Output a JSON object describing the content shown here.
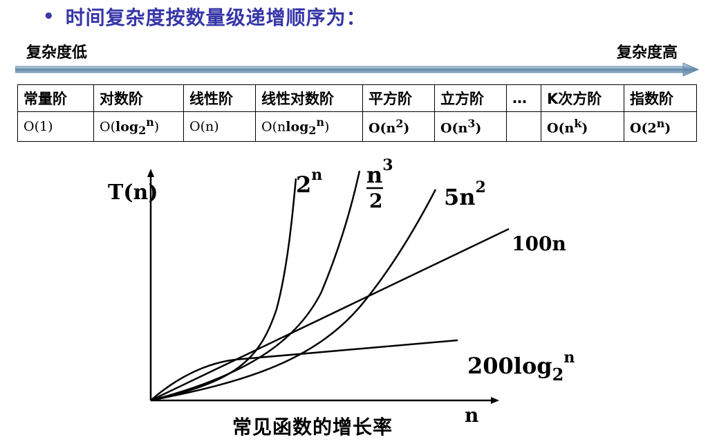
{
  "header": {
    "bullet": "•",
    "title": "时间复杂度按数量级递增顺序为："
  },
  "scale": {
    "low_label": "复杂度低",
    "high_label": "复杂度高"
  },
  "order_table": {
    "headers": [
      "常量阶",
      "对数阶",
      "线性阶",
      "线性对数阶",
      "平方阶",
      "立方阶",
      "…",
      "K次方阶",
      "指数阶"
    ],
    "values": [
      {
        "main": "O(1)"
      },
      {
        "pre": "O(",
        "b": "log",
        "sub": "2",
        "sup": "n",
        "post": ")"
      },
      {
        "main": "O(n)"
      },
      {
        "pre": "O(n",
        "b": "log",
        "sub": "2",
        "sup": "n",
        "post": ")"
      },
      {
        "pre": "O(n",
        "sup": "2",
        "post": ")",
        "bold": true
      },
      {
        "pre": "O(n",
        "sup": "3",
        "post": ")",
        "bold": true
      },
      {
        "main": ""
      },
      {
        "pre": "O(n",
        "sup": "k",
        "post": ")",
        "bold": true
      },
      {
        "pre": "O(2",
        "sup": "n",
        "post": ")",
        "bold": true
      }
    ]
  },
  "graph": {
    "y_axis_label": "T(n)",
    "x_axis_label": "n",
    "curves": {
      "exp": {
        "base": "2",
        "exp": "n"
      },
      "cubic": {
        "num": "n",
        "exp": "3",
        "den": "2"
      },
      "quad": {
        "coef": "5n",
        "exp": "2"
      },
      "linear": {
        "label": "100n"
      },
      "log": {
        "coef": "200log",
        "sub": "2",
        "sup": "n"
      }
    },
    "caption": "常见函数的增长率"
  }
}
